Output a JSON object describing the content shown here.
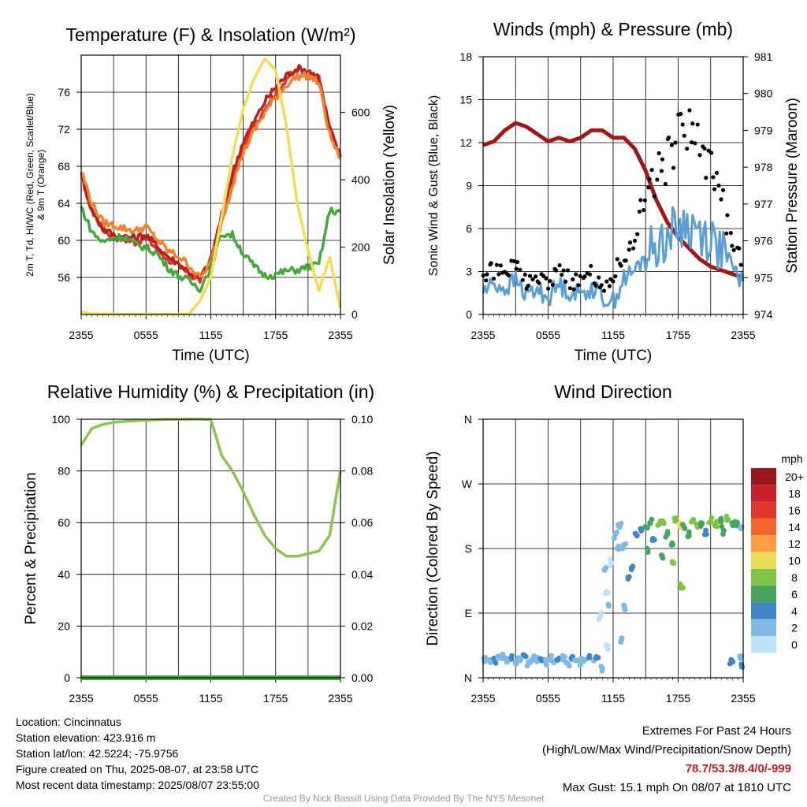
{
  "chart_data": [
    {
      "type": "line",
      "title": "Temperature (F) & Insolation (W/m²)",
      "xlabel": "Time (UTC)",
      "ylabel_lines": [
        "2m T, Td, HI/WC (Red, Green, Scarlet/Blue)",
        "& 9m T (Orange)"
      ],
      "y2label": "Solar Insolation (Yellow)",
      "x_ticks": [
        "2355",
        "0555",
        "1155",
        "1755",
        "2355"
      ],
      "y_ticks": [
        56,
        60,
        64,
        68,
        72,
        76
      ],
      "y2_ticks": [
        0,
        200,
        400,
        600
      ],
      "ylim": [
        52,
        80
      ],
      "y2lim": [
        0,
        770
      ],
      "x_hours": [
        0,
        1,
        2,
        3,
        4,
        5,
        6,
        7,
        8,
        9,
        10,
        11,
        12,
        13,
        14,
        15,
        16,
        17,
        18,
        19,
        20,
        21,
        22,
        23,
        24
      ],
      "series": [
        {
          "color": "#e0302a",
          "axis": "left",
          "values": [
            67,
            63.3,
            61.2,
            60.4,
            60.1,
            59.8,
            60.3,
            59.1,
            58,
            57.2,
            56.3,
            55.7,
            57.7,
            62.4,
            66.7,
            70.1,
            72.2,
            74.4,
            75.9,
            77.5,
            78.4,
            78.2,
            77.4,
            72,
            69
          ]
        },
        {
          "color": "#b8201c",
          "axis": "left",
          "values": [
            67,
            63.2,
            61.3,
            60.6,
            60.4,
            60.3,
            60.6,
            59.4,
            58.3,
            57.5,
            56.6,
            55.9,
            57.9,
            62.8,
            67.2,
            70.7,
            72.8,
            75,
            76.6,
            77.8,
            78.6,
            78.3,
            77.6,
            72.1,
            69
          ]
        },
        {
          "color": "#f2812e",
          "axis": "left",
          "values": [
            67.5,
            64,
            62,
            61.6,
            61.3,
            61,
            61.5,
            60.1,
            58.9,
            58.3,
            57.3,
            55.9,
            57.6,
            62,
            66,
            69.5,
            71.8,
            73.8,
            75.4,
            76.8,
            77.7,
            77.8,
            77,
            71.4,
            68.8
          ]
        },
        {
          "color": "#45a83c",
          "axis": "left",
          "values": [
            63.6,
            60.9,
            59.8,
            60.3,
            60.4,
            59.6,
            59.2,
            58.6,
            57.1,
            56.2,
            55.6,
            54.8,
            57.1,
            60.7,
            60.6,
            58.6,
            57.2,
            56.2,
            56.3,
            56.7,
            56.8,
            57.1,
            57.4,
            63.2,
            63.1
          ]
        },
        {
          "color": "#f5dc57",
          "axis": "right",
          "values": [
            8,
            2,
            1,
            1,
            1,
            1,
            1,
            1,
            1,
            1,
            2,
            40,
            110,
            290,
            470,
            610,
            700,
            760,
            725,
            560,
            330,
            190,
            70,
            170,
            20
          ]
        }
      ]
    },
    {
      "type": "line",
      "title": "Winds (mph) & Pressure (mb)",
      "xlabel": "Time (UTC)",
      "ylabel": "Sonic Wind & Gust (Blue, Black)",
      "y2label": "Station Pressure (Maroon)",
      "x_ticks": [
        "2355",
        "0555",
        "1155",
        "1755",
        "2355"
      ],
      "y_ticks": [
        0,
        3,
        6,
        9,
        12,
        15,
        18
      ],
      "y2_ticks": [
        974,
        975,
        976,
        977,
        978,
        979,
        980,
        981
      ],
      "ylim": [
        0,
        18
      ],
      "y2lim": [
        974,
        981
      ],
      "x_hours": [
        0,
        1,
        2,
        3,
        4,
        5,
        6,
        7,
        8,
        9,
        10,
        11,
        12,
        13,
        14,
        15,
        16,
        17,
        18,
        19,
        20,
        21,
        22,
        23,
        24
      ],
      "series": [
        {
          "color": "#9e1a18",
          "axis": "right",
          "values": [
            978.6,
            978.7,
            979,
            979.2,
            979.1,
            978.9,
            978.7,
            978.8,
            978.7,
            978.8,
            979,
            979,
            978.8,
            978.8,
            978.5,
            977.9,
            977.1,
            976.5,
            976.1,
            975.8,
            975.5,
            975.3,
            975.2,
            975.1,
            975
          ]
        },
        {
          "color": "#5b9fd6",
          "axis": "left",
          "values": [
            1.6,
            2.2,
            1.8,
            2.4,
            1.4,
            1.7,
            1.2,
            2.1,
            1.6,
            1.4,
            1.9,
            1.2,
            0.9,
            2.5,
            3,
            4.2,
            4.8,
            5.5,
            6.1,
            6.2,
            5.8,
            5.3,
            4.6,
            3.2,
            2.3
          ]
        },
        {
          "color": "#000000",
          "axis": "left",
          "style": "dots",
          "values": [
            2.6,
            3.1,
            3,
            3.5,
            2.4,
            2.6,
            2.3,
            3.1,
            2.4,
            2.3,
            2.8,
            2.1,
            2.8,
            4,
            5.5,
            7.7,
            9.8,
            10.8,
            12.5,
            13,
            11.6,
            10.1,
            8,
            5.3,
            3.3
          ]
        }
      ]
    },
    {
      "type": "line",
      "title": "Relative Humidity (%) & Precipitation (in)",
      "ylabel": "Percent & Precipitation",
      "x_ticks": [
        "2355",
        "0555",
        "1155",
        "1755",
        "2355"
      ],
      "y_ticks": [
        0,
        20,
        40,
        60,
        80,
        100
      ],
      "y2_ticks": [
        "0.00",
        "0.02",
        "0.04",
        "0.06",
        "0.08",
        "0.10"
      ],
      "ylim": [
        0,
        100
      ],
      "y2lim": [
        0,
        0.1
      ],
      "x_hours": [
        0,
        1,
        2,
        3,
        4,
        5,
        6,
        7,
        8,
        9,
        10,
        11,
        12,
        13,
        14,
        15,
        16,
        17,
        18,
        19,
        20,
        21,
        22,
        23,
        24
      ],
      "series": [
        {
          "color": "#8cc452",
          "axis": "left",
          "values": [
            90,
            96.5,
            98,
            98.8,
            99.2,
            99.4,
            99.6,
            99.8,
            99.9,
            99.9,
            100,
            100,
            99.9,
            86,
            80,
            72,
            63,
            55,
            50,
            47,
            47,
            48,
            49,
            55,
            80
          ]
        },
        {
          "color": "#45a83c",
          "axis": "right",
          "values": [
            0,
            0,
            0,
            0,
            0,
            0,
            0,
            0,
            0,
            0,
            0,
            0,
            0,
            0,
            0,
            0,
            0,
            0,
            0,
            0,
            0,
            0,
            0,
            0,
            0
          ]
        }
      ]
    },
    {
      "type": "scatter",
      "title": "Wind Direction",
      "ylabel": "Direction (Colored By Speed)",
      "x_ticks": [
        "2355",
        "0555",
        "1155",
        "1755",
        "2355"
      ],
      "y_ticks": [
        "N",
        "E",
        "S",
        "W",
        "N"
      ],
      "ylim": [
        0,
        360
      ],
      "legend_title": "mph",
      "legend_labels": [
        "20+",
        "18",
        "16",
        "14",
        "12",
        "10",
        "8",
        "6",
        "4",
        "2",
        "0"
      ],
      "legend_colors": [
        "#99181d",
        "#c7202a",
        "#e2352b",
        "#f2642c",
        "#fb9d40",
        "#e9dd57",
        "#80c447",
        "#47a55e",
        "#3f86c4",
        "#80b9e4",
        "#bfe3f6"
      ],
      "points_hours": [
        0.2,
        0.6,
        1,
        1.4,
        1.8,
        2.2,
        2.6,
        3,
        3.4,
        3.8,
        4.2,
        4.6,
        5,
        5.4,
        5.8,
        6.2,
        6.6,
        7,
        7.4,
        7.8,
        8.2,
        8.6,
        9,
        9.4,
        9.8,
        10.2,
        10.6,
        11,
        11.2,
        11.4,
        11.6,
        11.8,
        12.2,
        12.6,
        13,
        13.4,
        13.8,
        14.2,
        14.6,
        15,
        15.4,
        15.8,
        16.2,
        16.6,
        17,
        17.4,
        17.8,
        18.2,
        18.6,
        19,
        19.4,
        19.8,
        20.2,
        20.6,
        21,
        21.4,
        21.8,
        22.2,
        22.6,
        23,
        23.4,
        23.8,
        12.4,
        11.5,
        12.8,
        13.1,
        15.2,
        16.5,
        17.5,
        18.3,
        10.8,
        22.9,
        23.7,
        23.9
      ],
      "points_dir": [
        28,
        25,
        24,
        30,
        27,
        22,
        26,
        20,
        24,
        31,
        22,
        25,
        28,
        24,
        21,
        26,
        23,
        27,
        25,
        20,
        26,
        24,
        22,
        25,
        28,
        24,
        28,
        13,
        150,
        120,
        100,
        160,
        200,
        210,
        185,
        140,
        155,
        198,
        205,
        210,
        215,
        192,
        213,
        218,
        200,
        185,
        222,
        212,
        208,
        198,
        220,
        210,
        215,
        200,
        217,
        212,
        218,
        205,
        220,
        215,
        212,
        208,
        180,
        40,
        55,
        95,
        175,
        170,
        160,
        125,
        85,
        25,
        30,
        15
      ],
      "points_speed": [
        2,
        1,
        3,
        2,
        1,
        2,
        4,
        1,
        2,
        3,
        1,
        2,
        2,
        3,
        1,
        2,
        2,
        3,
        1,
        2,
        3,
        2,
        1,
        2,
        3,
        2,
        3,
        1,
        1,
        0,
        1,
        0,
        2,
        1,
        2,
        3,
        4,
        4,
        3,
        5,
        6,
        4,
        7,
        8,
        6,
        5,
        7,
        9,
        6,
        5,
        7,
        8,
        6,
        4,
        7,
        8,
        6,
        5,
        7,
        6,
        5,
        2,
        1,
        0,
        1,
        1,
        6,
        5,
        7,
        8,
        0,
        3,
        2,
        3
      ]
    }
  ],
  "info": {
    "location": "Location: Cincinnatus",
    "elevation": "Station elevation: 423.916 m",
    "latlon": "Station lat/lon: 42.5224; -75.9756",
    "created": "Figure created on Thu, 2025-08-07, at 23:58 UTC",
    "recent": "Most recent data timestamp: 2025/08/07 23:55:00"
  },
  "extremes": {
    "title": "Extremes For Past 24 Hours",
    "subtitle": "(High/Low/Max Wind/Precipitation/Snow Depth)",
    "values": "78.7/53.3/8.4/0/-999",
    "gust": "Max Gust: 15.1 mph On 08/07 at 1810 UTC"
  },
  "credit": "Created By Nick Bassill Using Data Provided By The NYS Mesonet"
}
